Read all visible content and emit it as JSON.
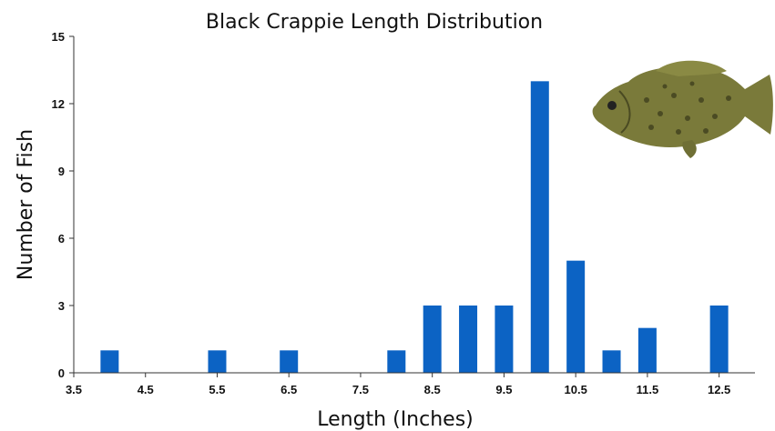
{
  "chart_data": {
    "type": "bar",
    "title": "Black Crappie Length Distribution",
    "xlabel": "Length (Inches)",
    "ylabel": "Number of Fish",
    "xlim": [
      3.5,
      13
    ],
    "ylim": [
      0,
      15
    ],
    "x_ticks": [
      "3.5",
      "4.5",
      "5.5",
      "6.5",
      "7.5",
      "8.5",
      "9.5",
      "10.5",
      "11.5",
      "12.5"
    ],
    "y_ticks": [
      "0",
      "3",
      "6",
      "9",
      "12",
      "15"
    ],
    "x": [
      4,
      5.5,
      6.5,
      8,
      8.5,
      9,
      9.5,
      10,
      10.5,
      11,
      11.5,
      12.5
    ],
    "values": [
      1,
      1,
      1,
      1,
      3,
      3,
      3,
      13,
      5,
      1,
      2,
      3
    ],
    "bar_color": "#0c63c4",
    "grid": false,
    "legend": "none"
  },
  "image": {
    "icon": "black-crappie-fish-icon"
  }
}
